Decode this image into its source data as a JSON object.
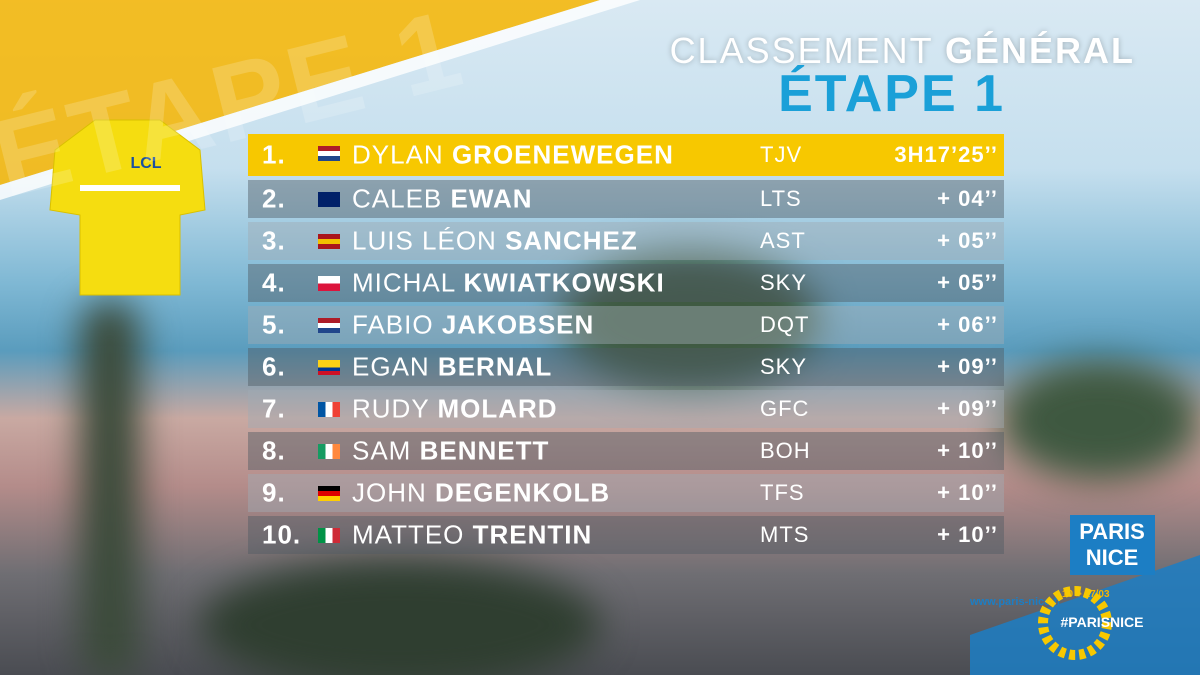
{
  "background_text": "ÉTAPE 1",
  "title": {
    "line1_light": "CLASSEMENT",
    "line1_bold": "GÉNÉRAL",
    "line2": "ÉTAPE 1"
  },
  "rows": [
    {
      "rank": "1.",
      "first": "DYLAN",
      "last": "GROENEWEGEN",
      "team": "TJV",
      "time": "3H17’25’’"
    },
    {
      "rank": "2.",
      "first": "CALEB",
      "last": "EWAN",
      "team": "LTS",
      "time": "+ 04’’"
    },
    {
      "rank": "3.",
      "first": "LUIS LÉON",
      "last": "SANCHEZ",
      "team": "AST",
      "time": "+ 05’’"
    },
    {
      "rank": "4.",
      "first": "MICHAL",
      "last": "KWIATKOWSKI",
      "team": "SKY",
      "time": "+ 05’’"
    },
    {
      "rank": "5.",
      "first": "FABIO",
      "last": "JAKOBSEN",
      "team": "DQT",
      "time": "+ 06’’"
    },
    {
      "rank": "6.",
      "first": "EGAN",
      "last": "BERNAL",
      "team": "SKY",
      "time": "+ 09’’"
    },
    {
      "rank": "7.",
      "first": "RUDY",
      "last": "MOLARD",
      "team": "GFC",
      "time": "+ 09’’"
    },
    {
      "rank": "8.",
      "first": "SAM",
      "last": "BENNETT",
      "team": "BOH",
      "time": "+ 10’’"
    },
    {
      "rank": "9.",
      "first": "JOHN",
      "last": "DEGENKOLB",
      "team": "TFS",
      "time": "+ 10’’"
    },
    {
      "rank": "10.",
      "first": "MATTEO",
      "last": "TRENTIN",
      "team": "MTS",
      "time": "+ 10’’"
    }
  ],
  "jersey_text": "LCL",
  "logo": {
    "line1": "PARIS",
    "line2": "NICE",
    "url": "www.paris-nice.fr",
    "dates": "10 > 17/03",
    "hashtag": "#PARISNICE"
  }
}
